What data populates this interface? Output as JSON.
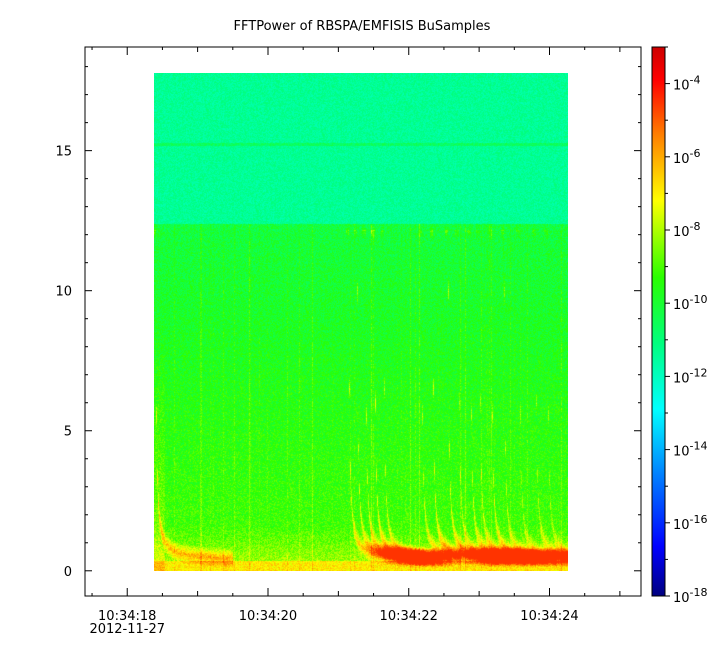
{
  "chart_data": {
    "type": "heatmap",
    "title": "FFTPower of RBSPA/EMFISIS  BuSamples",
    "x_axis": {
      "ticks": [
        {
          "t": 0,
          "label": "10:34:18",
          "sublabel": "2012-11-27"
        },
        {
          "t": 2,
          "label": "10:34:20"
        },
        {
          "t": 4,
          "label": "10:34:22"
        },
        {
          "t": 6,
          "label": "10:34:24"
        }
      ],
      "range_seconds": [
        -0.6,
        7.3
      ],
      "data_range_seconds": [
        0.4,
        6.3
      ]
    },
    "y_axis": {
      "range": [
        -0.9,
        18.7
      ],
      "data_range": [
        0,
        17.5
      ],
      "ticks": [
        0,
        5,
        10,
        15
      ],
      "tick_labels": [
        "0",
        "5",
        "10",
        "15"
      ]
    },
    "colorbar": {
      "scale": "log",
      "range_exponent": [
        -18,
        -3
      ],
      "tick_exponents": [
        -18,
        -16,
        -14,
        -12,
        -10,
        -8,
        -6,
        -4
      ],
      "tick_labels": [
        "10-18",
        "10-16",
        "10-14",
        "10-12",
        "10-10",
        "10-8",
        "10-6",
        "10-4"
      ],
      "colors": [
        "#00007f",
        "#0000ff",
        "#007fff",
        "#00ffff",
        "#00ff7f",
        "#2aff00",
        "#ffff00",
        "#ff7f00",
        "#ff0000",
        "#cc0000"
      ]
    },
    "features": {
      "upper_band_top": 17.5,
      "band_boundary": 12.2,
      "line_15_level": 15.0,
      "whistler_starts_seconds": [
        0.42,
        3.18,
        3.3,
        3.42,
        3.55,
        3.68,
        4.22,
        4.38,
        4.6,
        4.75,
        4.92,
        5.05,
        5.22,
        5.4,
        5.62,
        5.85,
        6.02
      ],
      "whistler_intensity": [
        1.0,
        0.9,
        0.8,
        0.85,
        0.95,
        0.7,
        0.75,
        0.95,
        0.9,
        0.7,
        0.8,
        0.7,
        0.85,
        0.65,
        0.55,
        0.6,
        0.5
      ]
    }
  }
}
